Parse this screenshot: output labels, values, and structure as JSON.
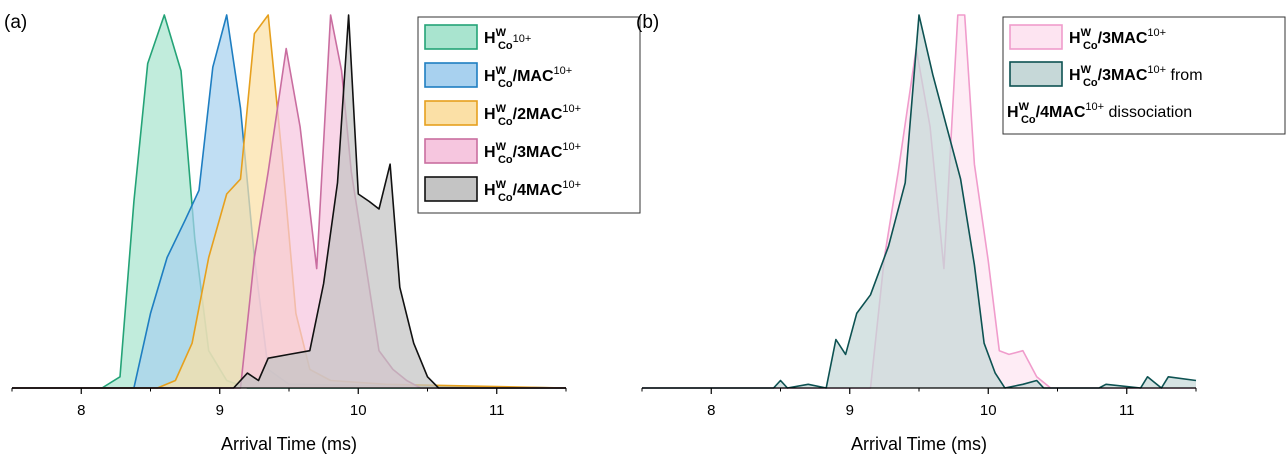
{
  "chart_data": [
    {
      "panel_label": "(a)",
      "type": "area",
      "xlabel": "Arrival Time (ms)",
      "ylabel": "",
      "xlim": [
        7.5,
        11.5
      ],
      "ylim": [
        0,
        1.0
      ],
      "xticks": [
        "8",
        "9",
        "10",
        "11"
      ],
      "grid": false,
      "legend_placement": "top-right",
      "series": [
        {
          "name": "H^W_Co^10+",
          "color": "#24a377",
          "fill": "#a9e4cf",
          "x": [
            7.5,
            8.15,
            8.28,
            8.38,
            8.48,
            8.6,
            8.72,
            8.82,
            8.92,
            9.05,
            9.2,
            11.5
          ],
          "y": [
            0,
            0,
            0.03,
            0.5,
            0.87,
            1.0,
            0.85,
            0.4,
            0.1,
            0.02,
            0,
            0
          ]
        },
        {
          "name": "H^W_Co/MAC^10+",
          "color": "#1e7ec1",
          "fill": "#a8d1ef",
          "x": [
            7.5,
            8.38,
            8.5,
            8.62,
            8.75,
            8.85,
            8.95,
            9.05,
            9.15,
            9.25,
            9.35,
            9.5,
            11.5
          ],
          "y": [
            0,
            0,
            0.2,
            0.35,
            0.45,
            0.53,
            0.86,
            1.0,
            0.75,
            0.35,
            0.05,
            0.01,
            0
          ]
        },
        {
          "name": "H^W_Co/2MAC^10+",
          "color": "#e6a01e",
          "fill": "#fbe0a6",
          "x": [
            7.5,
            8.55,
            8.68,
            8.8,
            8.92,
            9.05,
            9.15,
            9.25,
            9.35,
            9.45,
            9.55,
            9.65,
            9.8,
            10.2,
            11.5
          ],
          "y": [
            0,
            0,
            0.02,
            0.12,
            0.35,
            0.52,
            0.56,
            0.95,
            1.0,
            0.62,
            0.2,
            0.05,
            0.02,
            0.01,
            0
          ]
        },
        {
          "name": "H^W_Co/3MAC^10+",
          "color": "#c96ea0",
          "fill": "#f6c6df",
          "x": [
            7.5,
            9.15,
            9.25,
            9.35,
            9.48,
            9.58,
            9.7,
            9.8,
            9.88,
            9.95,
            10.05,
            10.15,
            10.25,
            10.35,
            10.45,
            11.5
          ],
          "y": [
            0,
            0,
            0.35,
            0.58,
            0.91,
            0.7,
            0.32,
            1.0,
            0.85,
            0.58,
            0.34,
            0.1,
            0.05,
            0.02,
            0,
            0
          ]
        },
        {
          "name": "H^W_Co/4MAC^10+",
          "color": "#111111",
          "fill": "#c4c4c4",
          "x": [
            7.5,
            9.1,
            9.2,
            9.28,
            9.35,
            9.5,
            9.65,
            9.75,
            9.85,
            9.93,
            10.0,
            10.08,
            10.15,
            10.23,
            10.3,
            10.4,
            10.5,
            10.58,
            11.5
          ],
          "y": [
            0,
            0,
            0.04,
            0.02,
            0.08,
            0.09,
            0.1,
            0.28,
            0.55,
            1.0,
            0.52,
            0.5,
            0.48,
            0.6,
            0.27,
            0.12,
            0.03,
            0,
            0
          ]
        }
      ],
      "legend": [
        {
          "main": "H",
          "sup": "W",
          "sub": "Co",
          "rest": "",
          "sup_rest": "10+",
          "extra": ""
        },
        {
          "main": "H",
          "sup": "W",
          "sub": "Co",
          "rest": "/MAC",
          "sup_rest": "10+",
          "extra": ""
        },
        {
          "main": "H",
          "sup": "W",
          "sub": "Co",
          "rest": "/2MAC",
          "sup_rest": "10+",
          "extra": ""
        },
        {
          "main": "H",
          "sup": "W",
          "sub": "Co",
          "rest": "/3MAC",
          "sup_rest": "10+",
          "extra": ""
        },
        {
          "main": "H",
          "sup": "W",
          "sub": "Co",
          "rest": "/4MAC",
          "sup_rest": "10+",
          "extra": ""
        }
      ]
    },
    {
      "panel_label": "(b)",
      "type": "area",
      "xlabel": "Arrival Time (ms)",
      "ylabel": "",
      "xlim": [
        7.5,
        11.5
      ],
      "ylim": [
        0,
        1.0
      ],
      "xticks": [
        "8",
        "9",
        "10",
        "11"
      ],
      "grid": false,
      "legend_placement": "top-right",
      "series": [
        {
          "name": "H^W_Co/3MAC^10+",
          "color": "#f09ccc",
          "fill": "#fde4f1",
          "x": [
            7.5,
            9.15,
            9.25,
            9.35,
            9.48,
            9.58,
            9.68,
            9.78,
            9.83,
            9.9,
            10.0,
            10.08,
            10.15,
            10.25,
            10.35,
            10.45,
            11.5
          ],
          "y": [
            0,
            0,
            0.35,
            0.58,
            0.91,
            0.7,
            0.32,
            1.0,
            1.0,
            0.6,
            0.34,
            0.1,
            0.09,
            0.1,
            0.03,
            0,
            0
          ]
        },
        {
          "name": "H^W_Co/3MAC^10+ from H^W_Co/4MAC^10+ dissociation",
          "color": "#0d5252",
          "fill": "#c6d8d8",
          "x": [
            7.5,
            8.45,
            8.5,
            8.55,
            8.7,
            8.83,
            8.9,
            8.97,
            9.05,
            9.15,
            9.28,
            9.4,
            9.5,
            9.6,
            9.7,
            9.8,
            9.9,
            9.97,
            10.05,
            10.12,
            10.25,
            10.35,
            10.4,
            10.8,
            10.85,
            11.1,
            11.15,
            11.25,
            11.3,
            11.5
          ],
          "y": [
            0,
            0,
            0.02,
            0,
            0.01,
            0.0,
            0.13,
            0.09,
            0.2,
            0.25,
            0.38,
            0.55,
            1.0,
            0.84,
            0.7,
            0.56,
            0.33,
            0.12,
            0.04,
            0.0,
            0.01,
            0.02,
            0.0,
            0.0,
            0.01,
            0.0,
            0.03,
            0.0,
            0.03,
            0.02
          ]
        }
      ],
      "legend": [
        {
          "main": "H",
          "sup": "W",
          "sub": "Co",
          "rest": "/3MAC",
          "sup_rest": "10+",
          "extra": ""
        },
        {
          "main": "H",
          "sup": "W",
          "sub": "Co",
          "rest": "/3MAC",
          "sup_rest": "10+",
          "extra": " from"
        }
      ],
      "legend_continuation": {
        "main": "H",
        "sup": "W",
        "sub": "Co",
        "rest": "/4MAC",
        "sup_rest": "10+",
        "extra": " dissociation"
      }
    }
  ]
}
